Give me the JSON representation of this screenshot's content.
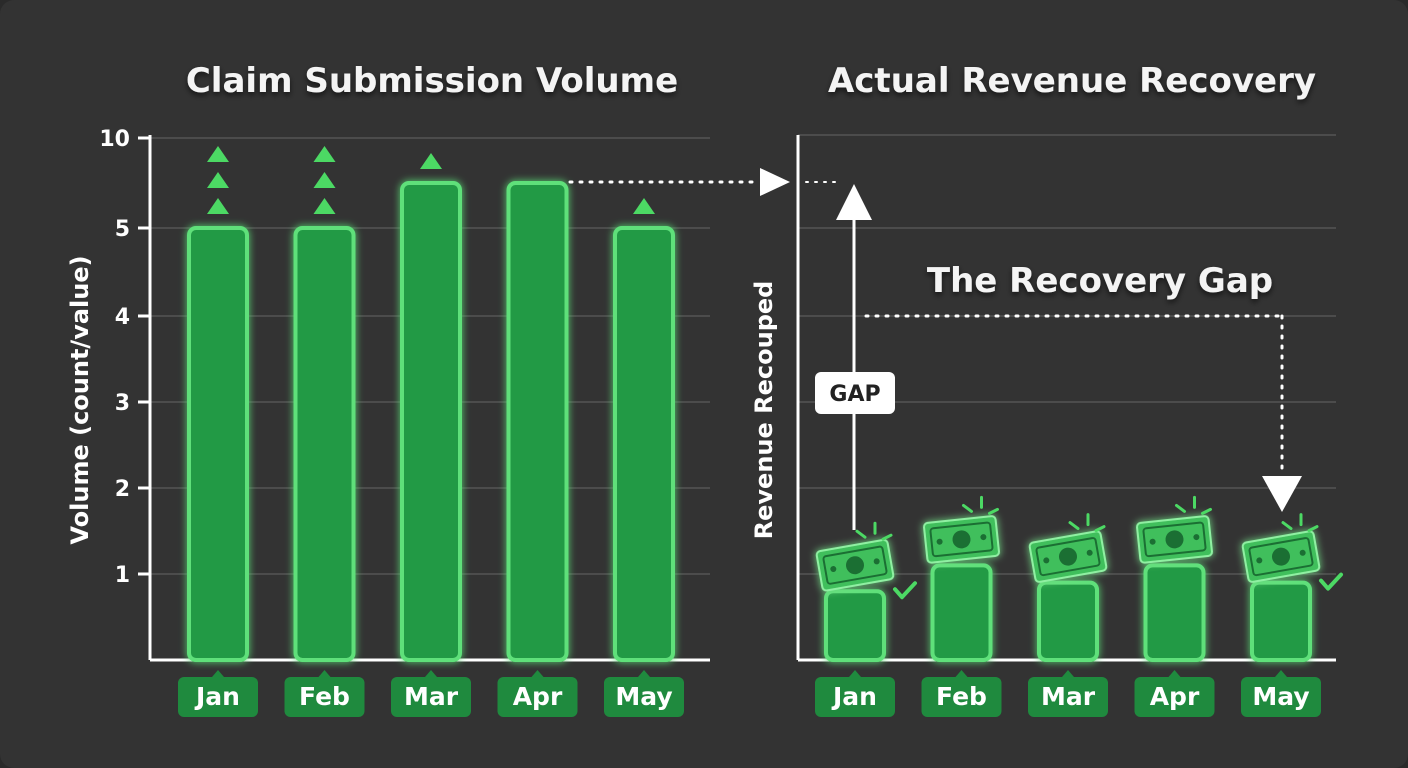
{
  "colors": {
    "background": "#333333",
    "bar_fill": "#219a45",
    "bar_stroke": "#5fe07a",
    "chip_fill": "#1f8a3e",
    "accent": "#4cd964",
    "grid": "#555555",
    "axis": "#ffffff"
  },
  "annotations": {
    "gap_title": "The Recovery Gap",
    "gap_badge": "GAP"
  },
  "chart_data": [
    {
      "type": "bar",
      "title": "Claim Submission Volume",
      "xlabel": "",
      "ylabel": "Volume (count/value)",
      "categories": [
        "Jan",
        "Feb",
        "Mar",
        "Apr",
        "May"
      ],
      "values": [
        5,
        5,
        5.5,
        5.5,
        5
      ],
      "up_markers": [
        3,
        3,
        1,
        0,
        1
      ],
      "yticks": [
        "1",
        "2",
        "3",
        "4",
        "5",
        "10"
      ],
      "grid": true
    },
    {
      "type": "bar",
      "title": "Actual Revenue Recovery",
      "xlabel": "",
      "ylabel": "Revenue Recouped",
      "categories": [
        "Jan",
        "Feb",
        "Mar",
        "Apr",
        "May"
      ],
      "values": [
        0.8,
        1.1,
        0.9,
        1.1,
        0.9
      ],
      "icons": [
        "money-bill-icon",
        "money-bill-icon",
        "money-bill-icon",
        "money-bill-icon",
        "money-bill-icon"
      ],
      "grid": true
    }
  ]
}
